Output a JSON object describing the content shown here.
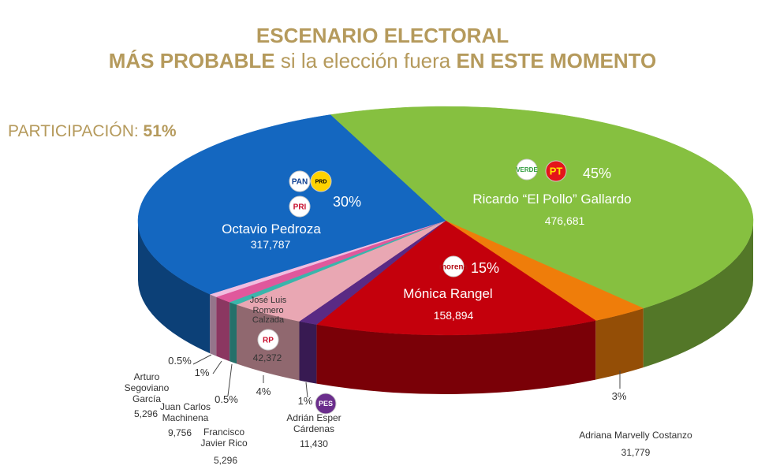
{
  "chart_data": {
    "type": "pie",
    "title": "ESCENARIO ELECTORAL",
    "subtitle": [
      "MÁS PROBABLE",
      "si la elección fuera",
      "EN ESTE MOMENTO"
    ],
    "participation": {
      "label": "PARTICIPACIÓN:",
      "value": "51%"
    },
    "categories": [
      "Ricardo “El Pollo” Gallardo",
      "Adriana Marvelly Costanzo",
      "Mónica Rangel",
      "Adrián Esper Cárdenas",
      "José Luis Romero Calzada",
      "Francisco Javier Rico",
      "Juan Carlos Machinena",
      "Arturo Segoviano García",
      "Octavio Pedroza"
    ],
    "values": [
      45,
      3,
      15,
      1,
      4,
      0.5,
      1,
      0.5,
      30
    ],
    "value_labels": [
      "45%",
      "3%",
      "15%",
      "1%",
      "4%",
      "0.5%",
      "1%",
      "0.5%",
      "30%"
    ],
    "colors": [
      "#86c040",
      "#ef7d0a",
      "#c4000c",
      "#5a2a84",
      "#e9a7b3",
      "#3ab5ab",
      "#e0589c",
      "#f1bde0",
      "#1467c0"
    ],
    "votes": {
      "values": [
        476681,
        31779,
        158894,
        11430,
        42372,
        5296,
        9756,
        5296,
        317787
      ],
      "value_labels": [
        "476,681",
        "31,779",
        "158,894",
        "11,430",
        "42,372",
        "5,296",
        "9,756",
        "5,296",
        "317,787"
      ]
    },
    "logos": [
      "VERDE",
      "PT",
      "morena",
      "PES",
      "RP",
      "PAN",
      "PRD",
      "PRI"
    ]
  }
}
